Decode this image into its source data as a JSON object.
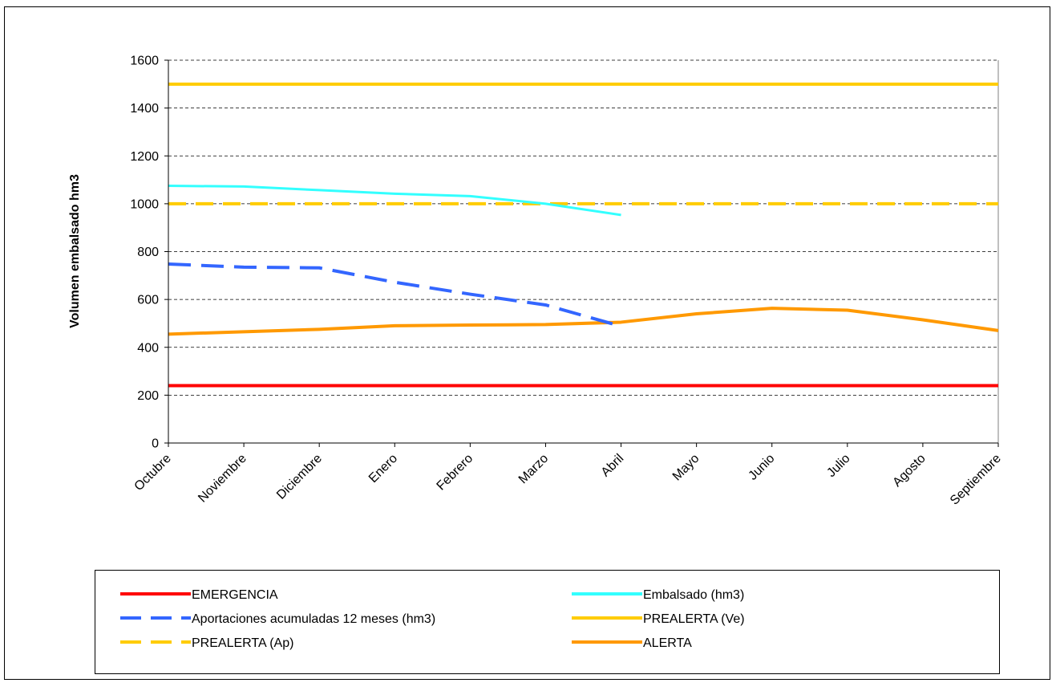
{
  "chart_data": {
    "type": "line",
    "title": "",
    "xlabel": "",
    "ylabel": "Volumen embalsado hm3",
    "ylim": [
      0,
      1600
    ],
    "yticks": [
      0,
      200,
      400,
      600,
      800,
      1000,
      1200,
      1400,
      1600
    ],
    "grid": "horizontal dashed",
    "legend_position": "bottom",
    "categories": [
      "Octubre",
      "Noviembre",
      "Diciembre",
      "Enero",
      "Febrero",
      "Marzo",
      "Abril",
      "Mayo",
      "Junio",
      "Julio",
      "Agosto",
      "Septiembre"
    ],
    "series": [
      {
        "name": "EMERGENCIA",
        "color": "#ff0000",
        "dash": "solid",
        "values": [
          240,
          240,
          240,
          240,
          240,
          240,
          240,
          240,
          240,
          240,
          240,
          240
        ]
      },
      {
        "name": "Embalsado (hm3)",
        "color": "#33ffff",
        "dash": "solid",
        "values": [
          1075,
          1072,
          1057,
          1042,
          1032,
          1000,
          953,
          null,
          null,
          null,
          null,
          null
        ]
      },
      {
        "name": "Aportaciones acumuladas 12 meses (hm3)",
        "color": "#3366ff",
        "dash": "dashed",
        "values": [
          748,
          735,
          732,
          672,
          622,
          577,
          488,
          null,
          null,
          null,
          null,
          null
        ]
      },
      {
        "name": "PREALERTA (Ve)",
        "color": "#ffcc00",
        "dash": "solid",
        "values": [
          1500,
          1500,
          1500,
          1500,
          1500,
          1500,
          1500,
          1500,
          1500,
          1500,
          1500,
          1500
        ]
      },
      {
        "name": "PREALERTA (Ap)",
        "color": "#ffcc00",
        "dash": "dashed",
        "values": [
          1000,
          1000,
          1000,
          1000,
          1000,
          1000,
          1000,
          1000,
          1000,
          1000,
          1000,
          1000
        ]
      },
      {
        "name": "ALERTA",
        "color": "#ff9900",
        "dash": "solid",
        "values": [
          455,
          465,
          475,
          490,
          493,
          495,
          505,
          540,
          563,
          555,
          515,
          470
        ]
      }
    ],
    "legend_order": [
      [
        "EMERGENCIA",
        "Embalsado (hm3)"
      ],
      [
        "Aportaciones acumuladas 12 meses (hm3)",
        "PREALERTA (Ve)"
      ],
      [
        "PREALERTA (Ap)",
        "ALERTA"
      ]
    ]
  }
}
